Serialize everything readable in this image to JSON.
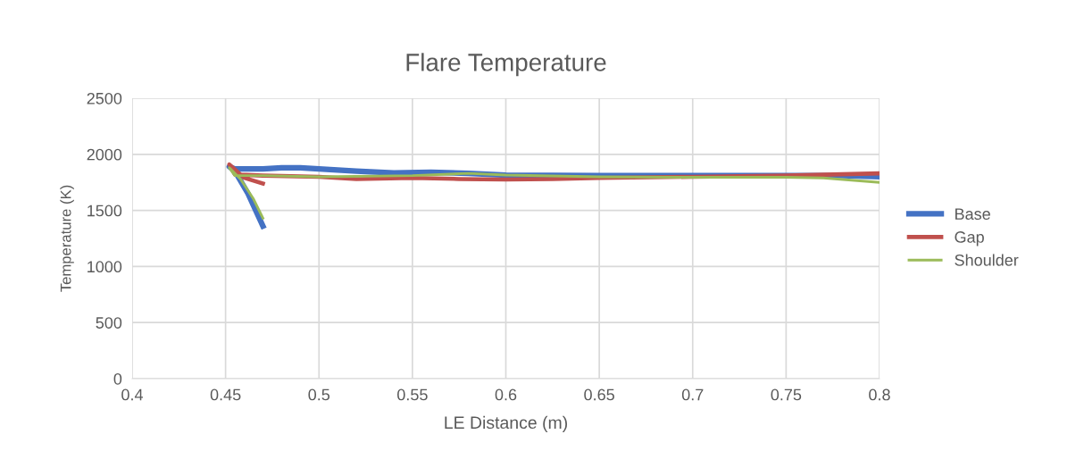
{
  "chart_data": {
    "type": "line",
    "title": "Flare Temperature",
    "xlabel": "LE Distance (m)",
    "ylabel": "Temperature (K)",
    "xlim": [
      0.4,
      0.8
    ],
    "xticks": [
      0.4,
      0.45,
      0.5,
      0.55,
      0.6,
      0.65,
      0.7,
      0.75,
      0.8
    ],
    "ylim": [
      0,
      2500
    ],
    "yticks": [
      0,
      500,
      1000,
      1500,
      2000,
      2500
    ],
    "grid": true,
    "legend": "right",
    "marker": "none",
    "line_style": "solid",
    "series": [
      {
        "name": "Base",
        "color": "#4472c4",
        "x": [
          0.47,
          0.462,
          0.455,
          0.452,
          0.455,
          0.47,
          0.48,
          0.49,
          0.5,
          0.52,
          0.54,
          0.56,
          0.58,
          0.6,
          0.65,
          0.7,
          0.75,
          0.78,
          0.8
        ],
        "values": [
          1360,
          1650,
          1850,
          1890,
          1870,
          1870,
          1880,
          1880,
          1870,
          1850,
          1835,
          1840,
          1830,
          1815,
          1810,
          1810,
          1810,
          1810,
          1800
        ]
      },
      {
        "name": "Gap",
        "color": "#c0504d",
        "x": [
          0.47,
          0.46,
          0.452,
          0.455,
          0.47,
          0.5,
          0.52,
          0.55,
          0.575,
          0.6,
          0.625,
          0.65,
          0.7,
          0.75,
          0.8
        ],
        "values": [
          1740,
          1790,
          1910,
          1820,
          1810,
          1800,
          1780,
          1790,
          1780,
          1775,
          1780,
          1790,
          1800,
          1810,
          1830
        ]
      },
      {
        "name": "Shoulder",
        "color": "#9bbb59",
        "x": [
          0.47,
          0.465,
          0.458,
          0.452,
          0.455,
          0.47,
          0.5,
          0.55,
          0.58,
          0.6,
          0.65,
          0.7,
          0.75,
          0.77,
          0.8
        ],
        "values": [
          1430,
          1600,
          1780,
          1880,
          1810,
          1810,
          1800,
          1810,
          1830,
          1815,
          1800,
          1795,
          1795,
          1790,
          1750
        ]
      }
    ]
  }
}
